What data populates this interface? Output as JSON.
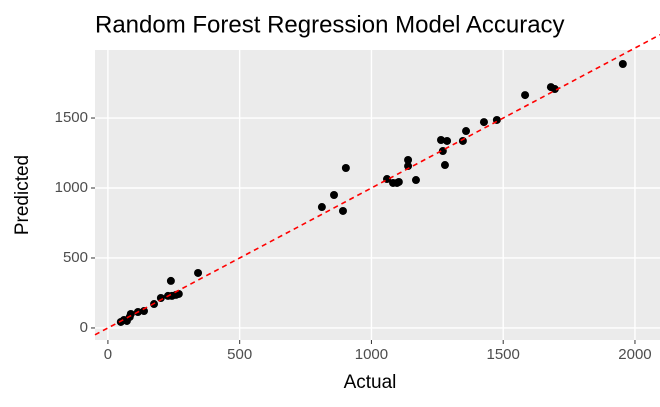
{
  "chart_data": {
    "type": "scatter",
    "title": "Random Forest Regression Model Accuracy",
    "x_label": "Actual",
    "y_label": "Predicted",
    "color": "#000000",
    "background": "#ebebeb",
    "grid": true,
    "reference_line": {
      "slope": 1,
      "intercept": 0,
      "color": "#ff0000",
      "dashed": true
    },
    "xlim": [
      -49,
      2095
    ],
    "ylim": [
      -86,
      1986
    ],
    "xticks": [
      0,
      500,
      1000,
      1500,
      2000
    ],
    "yticks": [
      0,
      500,
      1000,
      1500
    ],
    "x": [
      49,
      61,
      72,
      83,
      87,
      114,
      137,
      175,
      201,
      228,
      239,
      243,
      258,
      269,
      342,
      812,
      858,
      892,
      903,
      1059,
      1082,
      1097,
      1104,
      1139,
      1139,
      1169,
      1264,
      1271,
      1279,
      1287,
      1347,
      1359,
      1427,
      1476,
      1583,
      1681,
      1696,
      1954
    ],
    "values": [
      43,
      57,
      50,
      79,
      100,
      114,
      121,
      171,
      214,
      229,
      336,
      229,
      236,
      243,
      393,
      864,
      950,
      836,
      1143,
      1064,
      1036,
      1036,
      1043,
      1200,
      1157,
      1057,
      1343,
      1264,
      1164,
      1336,
      1336,
      1407,
      1471,
      1486,
      1664,
      1721,
      1707,
      1886
    ]
  }
}
